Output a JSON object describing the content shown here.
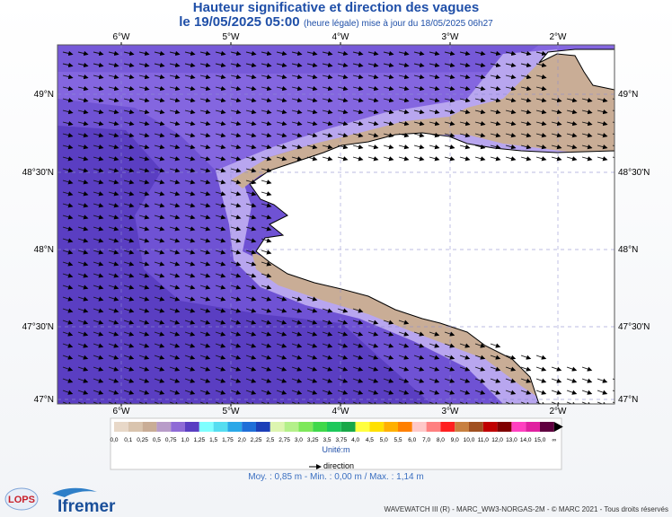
{
  "header": {
    "title": "Hauteur significative et direction des vagues",
    "date": "le 19/05/2025 05:00",
    "update_info": "(heure légale) mise à jour du 18/05/2025 06h27"
  },
  "map": {
    "lon_labels": [
      "6°W",
      "5°W",
      "4°W",
      "3°W",
      "2°W"
    ],
    "lat_labels": [
      "49°N",
      "48°30'N",
      "48°N",
      "47°30'N",
      "47°N"
    ],
    "lon_range": [
      -6.6,
      -1.6
    ],
    "lat_range": [
      46.97,
      49.33
    ]
  },
  "legend": {
    "labels": [
      "0,0",
      "0,1",
      "0,25",
      "0,5",
      "0,75",
      "1,0",
      "1,25",
      "1,5",
      "1,75",
      "2,0",
      "2,25",
      "2,5",
      "2,75",
      "3,0",
      "3,25",
      "3,5",
      "3,75",
      "4,0",
      "4,5",
      "5,0",
      "5,5",
      "6,0",
      "7,0",
      "8,0",
      "9,0",
      "10,0",
      "11,0",
      "12,0",
      "13,0",
      "14,0",
      "15,0",
      "∞"
    ],
    "colors": [
      "#e8d8c8",
      "#d9c4ae",
      "#c9ad96",
      "#b89cc9",
      "#8f6bd6",
      "#5a3ec2",
      "#7fffff",
      "#55ddf0",
      "#2aa8e8",
      "#1f6fd8",
      "#1c3fb8",
      "#ddf5b0",
      "#b4f08a",
      "#7de85a",
      "#3fd84a",
      "#1cc85a",
      "#18a848",
      "#ffff40",
      "#ffe000",
      "#ffb000",
      "#ff8000",
      "#ffc8c8",
      "#ff8080",
      "#ff2020",
      "#c88040",
      "#a05020",
      "#c00000",
      "#800000",
      "#ff40c0",
      "#e020a0",
      "#600040"
    ],
    "unit": "Unité:m",
    "direction_label": "direction"
  },
  "stats": "Moy. : 0,85 m   -   Min. : 0,00 m / Max. : 1,14 m",
  "logos": {
    "lops": "LOPS",
    "ifremer": "Ifremer"
  },
  "credits": "WAVEWATCH III (R) - MARC_WW3-NORGAS-2M - © MARC 2021 - Tous droits réservés"
}
